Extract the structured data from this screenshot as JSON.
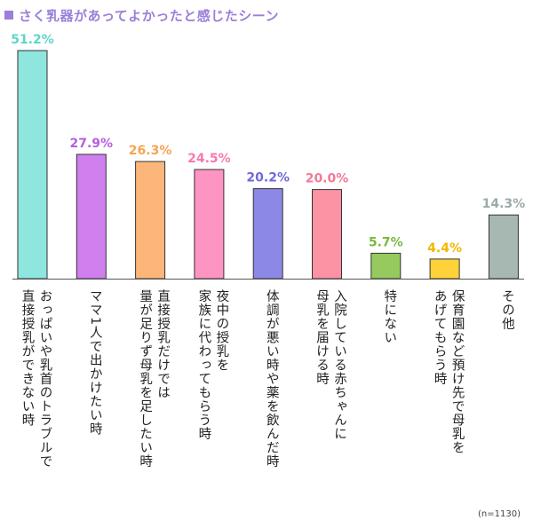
{
  "title": "さく乳器があってよかったと感じたシーン",
  "colors": {
    "title": "#9b7fd8",
    "baseline": "#555555",
    "bar_border": "#333333"
  },
  "sample_note": "(n=1130)",
  "chart_data": {
    "type": "bar",
    "title": "さく乳器があってよかったと感じたシーン",
    "categories": [
      "おっぱいや乳首のトラブルで\n直接授乳ができない時",
      "ママ1人で出かけたい時",
      "直接授乳だけでは\n量が足りず母乳を足したい時",
      "夜中の授乳を\n家族に代わってもらう時",
      "体調が悪い時や薬を飲んだ時",
      "入院している赤ちゃんに\n母乳を届ける時",
      "特にない",
      "保育園など預け先で母乳を\nあげてもらう時",
      "その他"
    ],
    "values": [
      51.2,
      27.9,
      26.3,
      24.5,
      20.2,
      20.0,
      5.7,
      4.4,
      14.3
    ],
    "value_labels": [
      "51.2%",
      "27.9%",
      "26.3%",
      "24.5%",
      "20.2%",
      "20.0%",
      "5.7%",
      "4.4%",
      "14.3%"
    ],
    "bar_colors": [
      "#8ee6de",
      "#cf7fee",
      "#fcb679",
      "#fe94c2",
      "#8b88e6",
      "#fc93a4",
      "#96c95e",
      "#fed238",
      "#a7b7b1"
    ],
    "label_colors": [
      "#5cd6cb",
      "#b55ee0",
      "#f7a452",
      "#f779b2",
      "#6f6ad8",
      "#f07a96",
      "#7ab83f",
      "#f0b800",
      "#9aabaa"
    ],
    "ylim": [
      0,
      51.2
    ],
    "xlabel": "",
    "ylabel": "",
    "grid": false
  }
}
